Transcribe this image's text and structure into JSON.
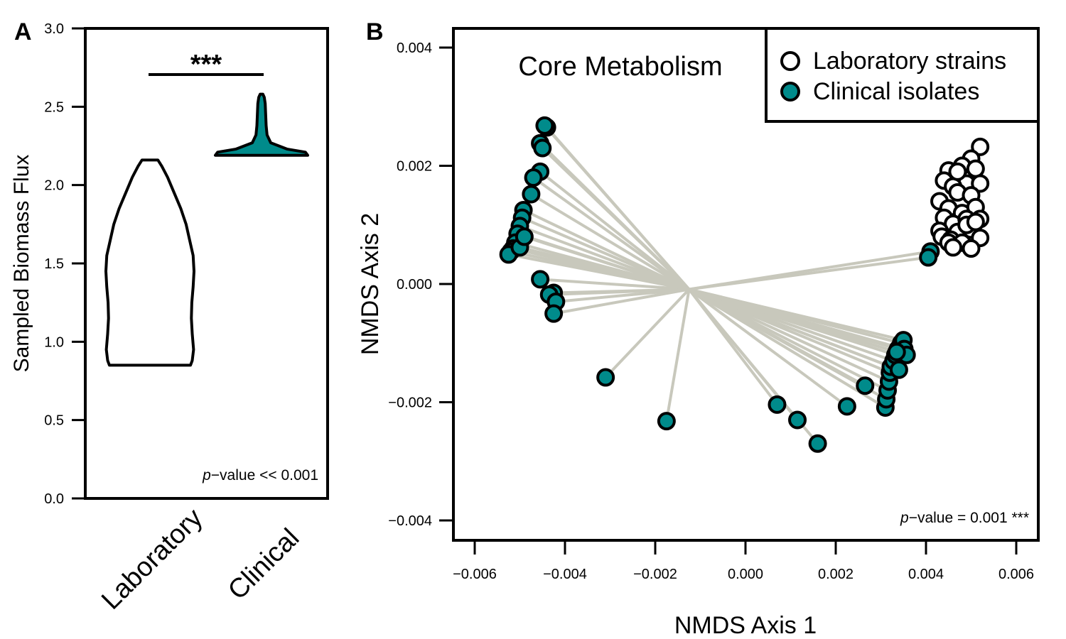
{
  "colors": {
    "clinical": "#008b8b",
    "laboratory": "#ffffff",
    "spider": "#c8c8bc",
    "outline": "#000000"
  },
  "chart_data": [
    {
      "panel": "A",
      "type": "violin",
      "ylabel": "Sampled Biomass Flux",
      "ylim": [
        0,
        3.0
      ],
      "yticks": [
        "0.0",
        "0.5",
        "1.0",
        "1.5",
        "2.0",
        "2.5",
        "3.0"
      ],
      "categories": [
        "Laboratory",
        "Clinical"
      ],
      "series": [
        {
          "category": "Laboratory",
          "min": 0.85,
          "max": 2.16,
          "fill": "#ffffff",
          "profile": [
            [
              0.85,
              0.92
            ],
            [
              0.88,
              0.96
            ],
            [
              0.95,
              0.99
            ],
            [
              1.05,
              0.96
            ],
            [
              1.15,
              0.94
            ],
            [
              1.25,
              0.95
            ],
            [
              1.35,
              0.98
            ],
            [
              1.45,
              1.0
            ],
            [
              1.55,
              0.98
            ],
            [
              1.65,
              0.9
            ],
            [
              1.75,
              0.82
            ],
            [
              1.85,
              0.7
            ],
            [
              1.95,
              0.55
            ],
            [
              2.05,
              0.4
            ],
            [
              2.12,
              0.27
            ],
            [
              2.16,
              0.18
            ]
          ]
        },
        {
          "category": "Clinical",
          "min": 2.19,
          "max": 2.58,
          "fill": "#008b8b",
          "profile": [
            [
              2.19,
              1.0
            ],
            [
              2.21,
              0.95
            ],
            [
              2.23,
              0.55
            ],
            [
              2.27,
              0.2
            ],
            [
              2.32,
              0.12
            ],
            [
              2.38,
              0.1
            ],
            [
              2.45,
              0.09
            ],
            [
              2.52,
              0.08
            ],
            [
              2.56,
              0.06
            ],
            [
              2.58,
              0.03
            ]
          ]
        }
      ],
      "significance": "***",
      "annotation_italic": "p",
      "annotation": "−value << 0.001"
    },
    {
      "panel": "B",
      "type": "scatter",
      "title": "Core Metabolism",
      "xlabel": "NMDS Axis 1",
      "ylabel": "NMDS Axis 2",
      "xlim": [
        -0.0065,
        0.0065
      ],
      "ylim": [
        -0.0043,
        0.004
      ],
      "xticks": [
        "−0.006",
        "−0.004",
        "−0.002",
        "0.000",
        "0.002",
        "0.004",
        "0.006"
      ],
      "yticks": [
        "0.004",
        "0.002",
        "0.000",
        "−0.002",
        "−0.004"
      ],
      "centroid": [
        -0.00125,
        -9e-05
      ],
      "legend": [
        "Laboratory strains",
        "Clinical isolates"
      ],
      "legend_position": "top-right",
      "annotation_italic": "p",
      "annotation": "−value = 0.001 ***",
      "series": [
        {
          "name": "Laboratory strains",
          "fill": "#ffffff",
          "points": [
            [
              0.0052,
              0.00232
            ],
            [
              0.005,
              0.00212
            ],
            [
              0.0048,
              0.002
            ],
            [
              0.0045,
              0.00192
            ],
            [
              0.0051,
              0.00195
            ],
            [
              0.0044,
              0.00175
            ],
            [
              0.0049,
              0.0017
            ],
            [
              0.0046,
              0.00165
            ],
            [
              0.0052,
              0.0017
            ],
            [
              0.0043,
              0.0014
            ],
            [
              0.0047,
              0.00155
            ],
            [
              0.005,
              0.0015
            ],
            [
              0.0045,
              0.00128
            ],
            [
              0.0048,
              0.0012
            ],
            [
              0.0051,
              0.0013
            ],
            [
              0.0044,
              0.00112
            ],
            [
              0.0046,
              0.00102
            ],
            [
              0.0049,
              0.0011
            ],
            [
              0.0052,
              0.0011
            ],
            [
              0.0043,
              0.0009
            ],
            [
              0.0047,
              0.00088
            ],
            [
              0.005,
              0.00092
            ],
            [
              0.00435,
              0.0008
            ],
            [
              0.00455,
              0.00075
            ],
            [
              0.0048,
              0.0007
            ],
            [
              0.0052,
              0.00078
            ],
            [
              0.0045,
              0.0007
            ],
            [
              0.005,
              0.0006
            ],
            [
              0.0046,
              0.00062
            ],
            [
              0.0049,
              0.001
            ],
            [
              0.0047,
              0.0019
            ],
            [
              0.0051,
              0.00105
            ]
          ]
        },
        {
          "name": "Clinical isolates",
          "fill": "#008b8b",
          "points": [
            [
              -0.0044,
              0.00265
            ],
            [
              -0.00445,
              0.00268
            ],
            [
              -0.00455,
              0.00238
            ],
            [
              -0.0045,
              0.0023
            ],
            [
              -0.00455,
              0.0019
            ],
            [
              -0.0047,
              0.0018
            ],
            [
              -0.00475,
              0.00152
            ],
            [
              -0.00492,
              0.00125
            ],
            [
              -0.00495,
              0.00112
            ],
            [
              -0.005,
              0.00098
            ],
            [
              -0.00505,
              0.00085
            ],
            [
              -0.0051,
              0.0007
            ],
            [
              -0.00515,
              0.0006
            ],
            [
              -0.0052,
              0.00055
            ],
            [
              -0.00525,
              0.0005
            ],
            [
              -0.005,
              0.00062
            ],
            [
              -0.0049,
              0.0008
            ],
            [
              -0.00455,
              8e-05
            ],
            [
              -0.00425,
              -0.00015
            ],
            [
              -0.00435,
              -0.00018
            ],
            [
              -0.0042,
              -0.0003
            ],
            [
              -0.00425,
              -0.0005
            ],
            [
              -0.0031,
              -0.00158
            ],
            [
              -0.00175,
              -0.00232
            ],
            [
              0.0007,
              -0.00204
            ],
            [
              0.00115,
              -0.0023
            ],
            [
              0.0016,
              -0.0027
            ],
            [
              0.00225,
              -0.00207
            ],
            [
              0.00265,
              -0.00172
            ],
            [
              0.0031,
              -0.00209
            ],
            [
              0.00312,
              -0.00195
            ],
            [
              0.00315,
              -0.0018
            ],
            [
              0.00318,
              -0.00165
            ],
            [
              0.0032,
              -0.0015
            ],
            [
              0.00322,
              -0.0014
            ],
            [
              0.00328,
              -0.0013
            ],
            [
              0.00332,
              -0.0012
            ],
            [
              0.00338,
              -0.0011
            ],
            [
              0.00345,
              -0.001
            ],
            [
              0.0035,
              -0.00095
            ],
            [
              0.00352,
              -0.0011
            ],
            [
              0.00357,
              -0.0012
            ],
            [
              0.0034,
              -0.00145
            ],
            [
              0.00335,
              -0.00115
            ],
            [
              0.0041,
              0.00055
            ],
            [
              0.00405,
              0.00045
            ]
          ]
        }
      ]
    }
  ]
}
